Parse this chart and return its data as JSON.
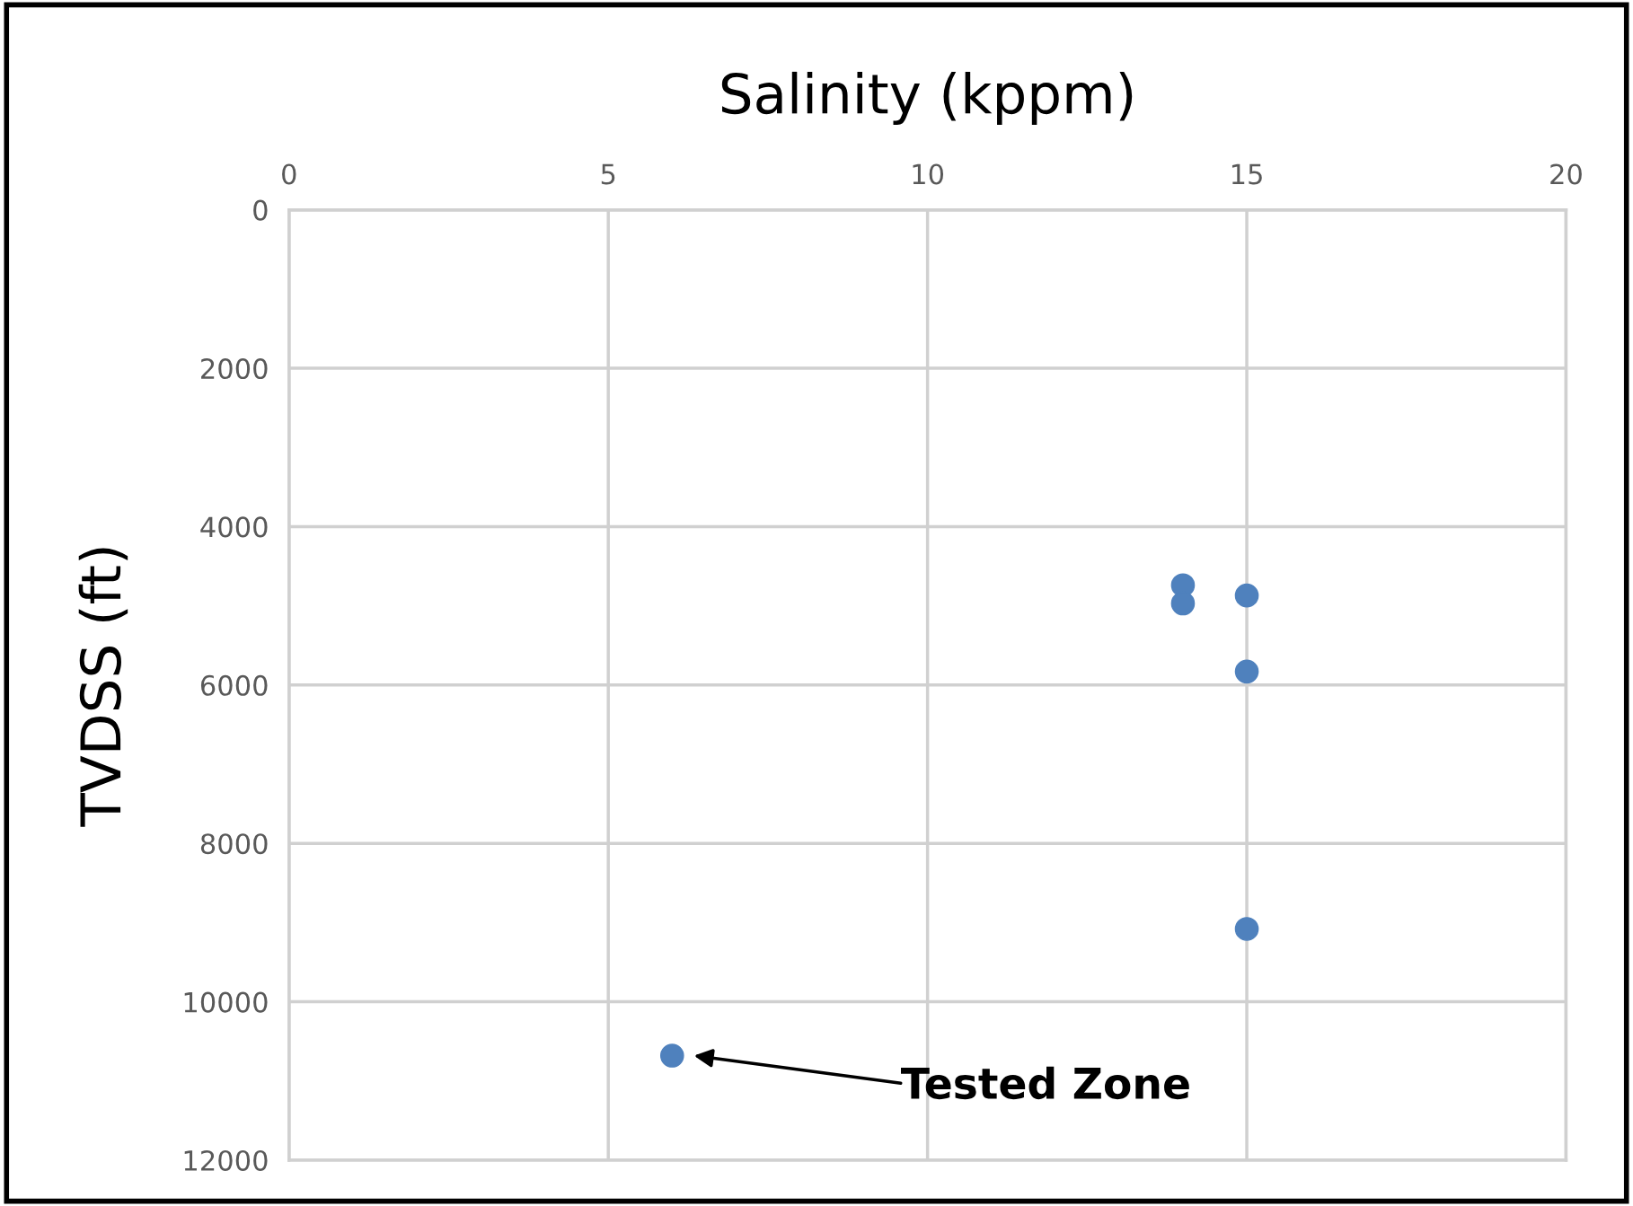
{
  "chart_data": {
    "type": "scatter",
    "xlabel": "Salinity (kppm)",
    "ylabel": "TVDSS (ft)",
    "x": [
      14,
      14,
      15,
      15,
      15,
      6
    ],
    "values": [
      4740,
      4970,
      4870,
      5830,
      9080,
      10680
    ],
    "color": "#4f81bd",
    "marker": "circle",
    "xlim": [
      0,
      20
    ],
    "xticks": [
      0,
      5,
      10,
      15,
      20
    ],
    "ylim": [
      12000,
      0
    ],
    "yticks": [
      0,
      2000,
      4000,
      6000,
      8000,
      10000,
      12000
    ],
    "grid": true,
    "annotations": [
      "Tested Zone"
    ]
  }
}
